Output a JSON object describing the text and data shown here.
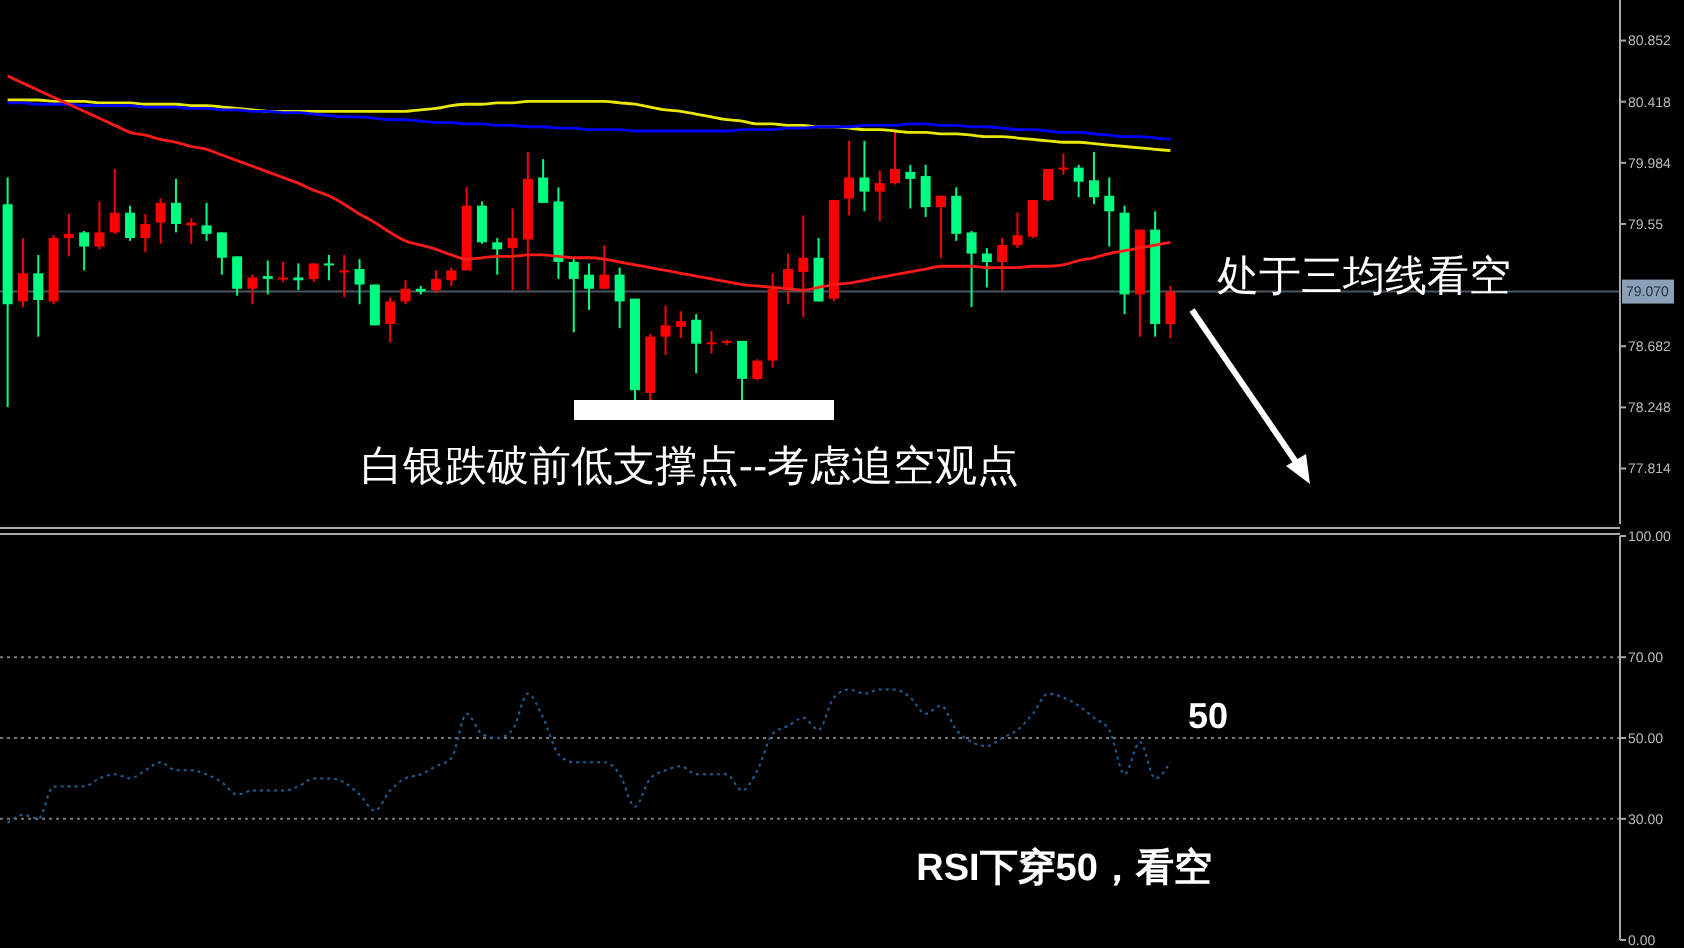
{
  "chart_data": [
    {
      "type": "candlestick",
      "categories": [
        null,
        null,
        null,
        null,
        null,
        null,
        null,
        null,
        null,
        null,
        null,
        null,
        null,
        null,
        null,
        null,
        null,
        null,
        null,
        null,
        null,
        null,
        null,
        null,
        null,
        null,
        null,
        null,
        null,
        null,
        null,
        null,
        null,
        null,
        null,
        null,
        null,
        null,
        null,
        null,
        null,
        null,
        null,
        null,
        null,
        null,
        null,
        null,
        null,
        null,
        null,
        null,
        null,
        null,
        null,
        null,
        null,
        null,
        null,
        null,
        null,
        null,
        null,
        null,
        null,
        null,
        null,
        null,
        null,
        null,
        null,
        null,
        null,
        null,
        null,
        null,
        null
      ],
      "ohlc": [
        [
          79.69,
          79.88,
          78.25,
          78.98
        ],
        [
          79.0,
          79.45,
          78.96,
          79.2
        ],
        [
          79.2,
          79.33,
          78.75,
          79.01
        ],
        [
          79.0,
          79.47,
          78.98,
          79.45
        ],
        [
          79.45,
          79.62,
          79.32,
          79.48
        ],
        [
          79.49,
          79.5,
          79.22,
          79.39
        ],
        [
          79.39,
          79.71,
          79.37,
          79.49
        ],
        [
          79.49,
          79.94,
          79.48,
          79.63
        ],
        [
          79.63,
          79.68,
          79.43,
          79.45
        ],
        [
          79.45,
          79.62,
          79.35,
          79.55
        ],
        [
          79.56,
          79.73,
          79.41,
          79.7
        ],
        [
          79.7,
          79.87,
          79.49,
          79.55
        ],
        [
          79.54,
          79.59,
          79.41,
          79.56
        ],
        [
          79.54,
          79.7,
          79.43,
          79.48
        ],
        [
          79.49,
          79.49,
          79.19,
          79.31
        ],
        [
          79.32,
          79.32,
          79.04,
          79.09
        ],
        [
          79.09,
          79.19,
          78.98,
          79.17
        ],
        [
          79.18,
          79.29,
          79.05,
          79.16
        ],
        [
          79.16,
          79.28,
          79.14,
          79.17
        ],
        [
          79.17,
          79.27,
          79.08,
          79.15
        ],
        [
          79.16,
          79.27,
          79.14,
          79.27
        ],
        [
          79.27,
          79.33,
          79.15,
          79.26
        ],
        [
          79.21,
          79.33,
          79.03,
          79.22
        ],
        [
          79.23,
          79.3,
          78.98,
          79.12
        ],
        [
          79.12,
          79.12,
          78.83,
          78.83
        ],
        [
          78.84,
          79.03,
          78.71,
          79.0
        ],
        [
          79.0,
          79.15,
          78.98,
          79.09
        ],
        [
          79.09,
          79.11,
          79.05,
          79.07
        ],
        [
          79.08,
          79.22,
          79.06,
          79.16
        ],
        [
          79.15,
          79.24,
          79.11,
          79.22
        ],
        [
          79.22,
          79.81,
          79.22,
          79.68
        ],
        [
          79.68,
          79.71,
          79.41,
          79.42
        ],
        [
          79.42,
          79.45,
          79.19,
          79.37
        ],
        [
          79.38,
          79.66,
          79.08,
          79.45
        ],
        [
          79.44,
          80.06,
          79.08,
          79.87
        ],
        [
          79.88,
          80.01,
          79.7,
          79.7
        ],
        [
          79.71,
          79.81,
          79.16,
          79.28
        ],
        [
          79.28,
          79.31,
          78.78,
          79.16
        ],
        [
          79.19,
          79.27,
          78.94,
          79.09
        ],
        [
          79.09,
          79.4,
          79.09,
          79.19
        ],
        [
          79.19,
          79.24,
          78.81,
          79.0
        ],
        [
          79.02,
          79.02,
          78.3,
          78.37
        ],
        [
          78.35,
          78.77,
          78.3,
          78.75
        ],
        [
          78.75,
          78.97,
          78.62,
          78.83
        ],
        [
          78.82,
          78.93,
          78.74,
          78.86
        ],
        [
          78.87,
          78.91,
          78.49,
          78.7
        ],
        [
          78.7,
          78.79,
          78.63,
          78.71
        ],
        [
          78.71,
          78.73,
          78.69,
          78.72
        ],
        [
          78.72,
          78.72,
          78.3,
          78.45
        ],
        [
          78.45,
          78.59,
          78.44,
          78.58
        ],
        [
          78.58,
          79.2,
          78.53,
          79.09
        ],
        [
          79.09,
          79.34,
          78.98,
          79.23
        ],
        [
          79.21,
          79.61,
          78.89,
          79.31
        ],
        [
          79.31,
          79.45,
          79.0,
          79.0
        ],
        [
          79.02,
          79.72,
          79.0,
          79.72
        ],
        [
          79.73,
          80.14,
          79.61,
          79.88
        ],
        [
          79.88,
          80.14,
          79.64,
          79.78
        ],
        [
          79.78,
          79.93,
          79.57,
          79.84
        ],
        [
          79.84,
          80.21,
          79.83,
          79.94
        ],
        [
          79.92,
          79.97,
          79.66,
          79.87
        ],
        [
          79.89,
          79.97,
          79.6,
          79.67
        ],
        [
          79.67,
          79.75,
          79.31,
          79.75
        ],
        [
          79.75,
          79.81,
          79.43,
          79.48
        ],
        [
          79.49,
          79.5,
          78.96,
          79.34
        ],
        [
          79.34,
          79.38,
          79.1,
          79.28
        ],
        [
          79.28,
          79.45,
          79.08,
          79.4
        ],
        [
          79.4,
          79.63,
          79.38,
          79.47
        ],
        [
          79.46,
          79.72,
          79.45,
          79.72
        ],
        [
          79.72,
          79.94,
          79.71,
          79.94
        ],
        [
          79.94,
          80.05,
          79.9,
          79.95
        ],
        [
          79.95,
          79.97,
          79.74,
          79.85
        ],
        [
          79.86,
          80.06,
          79.69,
          79.74
        ],
        [
          79.75,
          79.88,
          79.39,
          79.64
        ],
        [
          79.63,
          79.68,
          78.91,
          79.05
        ],
        [
          79.05,
          79.51,
          78.75,
          79.51
        ],
        [
          79.51,
          79.64,
          78.75,
          78.84
        ],
        [
          78.84,
          79.11,
          78.74,
          79.07
        ]
      ],
      "colors": [
        "#00ff80",
        "#ff0000",
        "#00ff80",
        "#ff0000",
        "#ff0000",
        "#00ff80",
        "#ff0000",
        "#ff0000",
        "#00ff80",
        "#ff0000",
        "#ff0000",
        "#00ff80",
        "#ff0000",
        "#00ff80",
        "#00ff80",
        "#00ff80",
        "#ff0000",
        "#00ff80",
        "#ff0000",
        "#00ff80",
        "#ff0000",
        "#00ff80",
        "#ff0000",
        "#00ff80",
        "#00ff80",
        "#ff0000",
        "#ff0000",
        "#00ff80",
        "#ff0000",
        "#ff0000",
        "#ff0000",
        "#00ff80",
        "#00ff80",
        "#ff0000",
        "#ff0000",
        "#00ff80",
        "#00ff80",
        "#00ff80",
        "#00ff80",
        "#ff0000",
        "#00ff80",
        "#00ff80",
        "#ff0000",
        "#ff0000",
        "#ff0000",
        "#00ff80",
        "#ff0000",
        "#ff0000",
        "#00ff80",
        "#ff0000",
        "#ff0000",
        "#ff0000",
        "#ff0000",
        "#00ff80",
        "#ff0000",
        "#ff0000",
        "#00ff80",
        "#ff0000",
        "#ff0000",
        "#00ff80",
        "#00ff80",
        "#ff0000",
        "#00ff80",
        "#00ff80",
        "#00ff80",
        "#ff0000",
        "#ff0000",
        "#ff0000",
        "#ff0000",
        "#ff0000",
        "#00ff80",
        "#00ff80",
        "#00ff80",
        "#00ff80",
        "#ff0000",
        "#00ff80",
        "#ff0000"
      ],
      "series": [
        {
          "type": "line",
          "color": "#e8e800",
          "values": [
            80.43,
            80.43,
            80.43,
            80.42,
            80.42,
            80.42,
            80.41,
            80.41,
            80.41,
            80.4,
            80.4,
            80.4,
            80.39,
            80.39,
            80.38,
            80.37,
            80.36,
            80.35,
            80.35,
            80.35,
            80.35,
            80.35,
            80.35,
            80.35,
            80.35,
            80.35,
            80.35,
            80.36,
            80.37,
            80.39,
            80.4,
            80.4,
            80.41,
            80.41,
            80.42,
            80.42,
            80.42,
            80.42,
            80.42,
            80.42,
            80.41,
            80.4,
            80.38,
            80.36,
            80.35,
            80.33,
            80.31,
            80.29,
            80.28,
            80.26,
            80.26,
            80.25,
            80.25,
            80.24,
            80.24,
            80.23,
            80.22,
            80.22,
            80.21,
            80.2,
            80.2,
            80.19,
            80.19,
            80.18,
            80.17,
            80.17,
            80.16,
            80.15,
            80.14,
            80.13,
            80.13,
            80.12,
            80.11,
            80.1,
            80.09,
            80.08,
            80.07
          ]
        },
        {
          "type": "line",
          "color": "#0000ff",
          "values": [
            80.41,
            80.41,
            80.4,
            80.4,
            80.4,
            80.39,
            80.39,
            80.39,
            80.39,
            80.38,
            80.38,
            80.38,
            80.37,
            80.37,
            80.36,
            80.36,
            80.35,
            80.35,
            80.34,
            80.34,
            80.33,
            80.32,
            80.31,
            80.31,
            80.3,
            80.29,
            80.29,
            80.28,
            80.27,
            80.27,
            80.26,
            80.26,
            80.25,
            80.25,
            80.24,
            80.24,
            80.23,
            80.23,
            80.22,
            80.22,
            80.22,
            80.21,
            80.21,
            80.21,
            80.21,
            80.21,
            80.21,
            80.21,
            80.22,
            80.22,
            80.22,
            80.23,
            80.23,
            80.24,
            80.24,
            80.24,
            80.25,
            80.25,
            80.25,
            80.26,
            80.26,
            80.25,
            80.25,
            80.24,
            80.24,
            80.23,
            80.22,
            80.22,
            80.21,
            80.2,
            80.2,
            80.19,
            80.18,
            80.17,
            80.17,
            80.16,
            80.15
          ]
        },
        {
          "type": "line",
          "color": "#ff1a1a",
          "values": [
            80.6,
            80.55,
            80.5,
            80.45,
            80.4,
            80.35,
            80.3,
            80.25,
            80.2,
            80.18,
            80.15,
            80.13,
            80.1,
            80.08,
            80.04,
            80.0,
            79.96,
            79.92,
            79.88,
            79.84,
            79.79,
            79.75,
            79.69,
            79.62,
            79.56,
            79.49,
            79.43,
            79.4,
            79.37,
            79.33,
            79.3,
            79.31,
            79.32,
            79.32,
            79.33,
            79.33,
            79.32,
            79.31,
            79.31,
            79.3,
            79.28,
            79.26,
            79.24,
            79.22,
            79.2,
            79.18,
            79.16,
            79.14,
            79.12,
            79.11,
            79.1,
            79.09,
            79.08,
            79.1,
            79.12,
            79.13,
            79.15,
            79.17,
            79.19,
            79.21,
            79.23,
            79.25,
            79.25,
            79.25,
            79.24,
            79.24,
            79.24,
            79.25,
            79.25,
            79.26,
            79.29,
            79.31,
            79.34,
            79.36,
            79.38,
            79.4,
            79.42
          ]
        }
      ],
      "ylim": [
        77.42,
        81.14
      ],
      "yticks": [
        80.852,
        80.418,
        79.984,
        79.55,
        78.682,
        78.248,
        77.814
      ],
      "ref_lines": [
        {
          "axis": "y",
          "value": 79.07,
          "label": "79.070",
          "color": "#4a5560"
        }
      ],
      "annotations": [
        "白银跌破前低支撑点--考虑追空观点",
        "处于三均线看空"
      ],
      "tick_labels": "y"
    },
    {
      "type": "line",
      "categories": [
        null,
        null,
        null,
        null,
        null,
        null,
        null,
        null,
        null,
        null,
        null,
        null,
        null,
        null,
        null,
        null,
        null,
        null,
        null,
        null,
        null,
        null,
        null,
        null,
        null,
        null,
        null,
        null,
        null,
        null,
        null,
        null,
        null,
        null,
        null,
        null,
        null,
        null,
        null,
        null,
        null,
        null,
        null,
        null,
        null,
        null,
        null,
        null,
        null,
        null,
        null,
        null,
        null,
        null,
        null,
        null,
        null,
        null,
        null,
        null,
        null,
        null,
        null,
        null,
        null,
        null,
        null,
        null,
        null,
        null,
        null,
        null,
        null,
        null,
        null,
        null,
        null
      ],
      "series": [
        {
          "color": "#1f5f96",
          "values": [
            29,
            31,
            30,
            38,
            38,
            38,
            40,
            41,
            40,
            42,
            44,
            42,
            42,
            41,
            39,
            36,
            37,
            37,
            37,
            38,
            40,
            40,
            39,
            36,
            32,
            37,
            40,
            41,
            43,
            45,
            56,
            51,
            50,
            52,
            61,
            55,
            46,
            44,
            44,
            44,
            41,
            33,
            40,
            42,
            43,
            41,
            41,
            41,
            37,
            42,
            51,
            53,
            55,
            52,
            60,
            62,
            61,
            62,
            62,
            60,
            56,
            58,
            52,
            49,
            48,
            50,
            52,
            56,
            61,
            60,
            58,
            55,
            52,
            41,
            49,
            40,
            44
          ]
        }
      ],
      "line_style": "dotted",
      "ylim": [
        0,
        100
      ],
      "yticks": [
        {
          "value": 100,
          "label": "100.00"
        },
        {
          "value": 70,
          "label": "70.00"
        },
        {
          "value": 50,
          "label": "50.00"
        },
        {
          "value": 30,
          "label": "30.00"
        },
        {
          "value": 0,
          "label": "0.00"
        }
      ],
      "ref_lines": [
        {
          "axis": "y",
          "value": 70,
          "line_style": "dotted",
          "color": "#777777"
        },
        {
          "axis": "y",
          "value": 50,
          "line_style": "dotted",
          "color": "#777777"
        },
        {
          "axis": "y",
          "value": 30,
          "line_style": "dotted",
          "color": "#777777"
        }
      ],
      "annotations": [
        "50",
        "RSI下穿50，看空"
      ],
      "tick_labels": "y"
    }
  ]
}
